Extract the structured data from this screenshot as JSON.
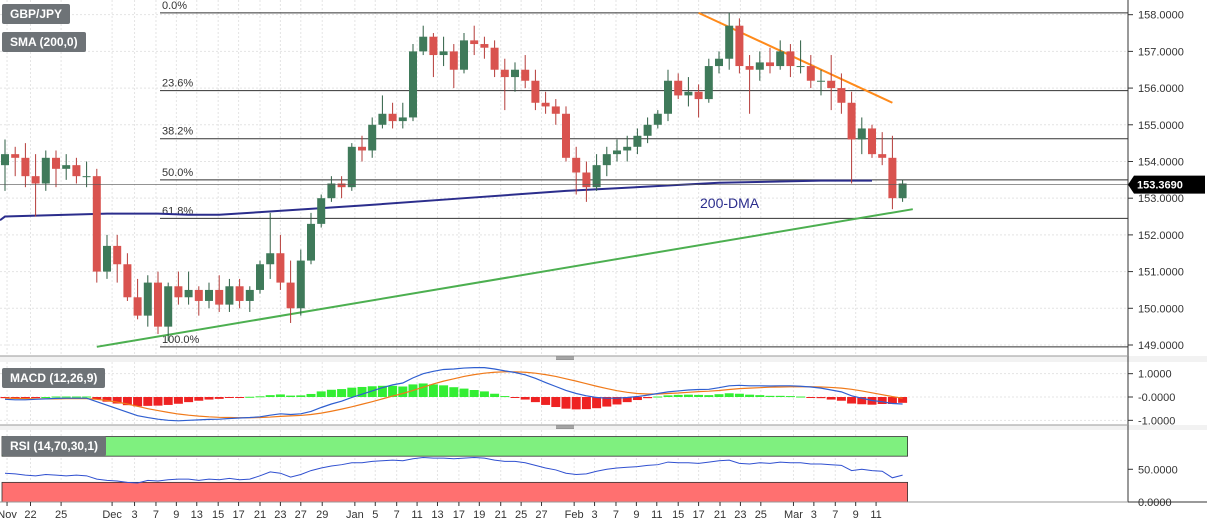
{
  "header": {
    "symbol": "GBP/JPY",
    "sma_label": "SMA (200,0)",
    "macd_label": "MACD (12,26,9)",
    "rsi_label": "RSI (14,70,30,1)"
  },
  "colors": {
    "bull_candle": "#3f7a5a",
    "bear_candle": "#d9534f",
    "sma": "#2b2d8c",
    "trend_up": "#4caf50",
    "trend_down": "#ff8a1a",
    "macd_line": "#2f5fd0",
    "signal_line": "#f07a1a",
    "hist_pos": "#33ee33",
    "hist_neg": "#ee2222",
    "rsi_line": "#3050d0",
    "overbought_zone": "#7ff07f",
    "oversold_zone": "#ff7070",
    "price_tag": "#000000"
  },
  "chart_data": [
    {
      "type": "candlestick",
      "title": "GBP/JPY",
      "price_axis_ticks": [
        "158.0000",
        "157.0000",
        "156.0000",
        "155.0000",
        "154.0000",
        "153.0000",
        "152.0000",
        "151.0000",
        "150.0000",
        "149.0000"
      ],
      "ylim": [
        148.7,
        158.4
      ],
      "current_price": "153.3690",
      "fib_levels": [
        {
          "label": "0.0%",
          "value": 158.05
        },
        {
          "label": "23.6%",
          "value": 155.93
        },
        {
          "label": "38.2%",
          "value": 154.62
        },
        {
          "label": "50.0%",
          "value": 153.5
        },
        {
          "label": "61.8%",
          "value": 152.45
        },
        {
          "label": "100.0%",
          "value": 148.95
        }
      ],
      "sma_label": "200-DMA",
      "sma_200": [
        [
          -20,
          152.4
        ],
        [
          0,
          152.5
        ],
        [
          10,
          152.58
        ],
        [
          15,
          152.58
        ],
        [
          18,
          152.55
        ],
        [
          21,
          152.55
        ],
        [
          25,
          152.62
        ],
        [
          35,
          152.8
        ],
        [
          45,
          153.0
        ],
        [
          55,
          153.2
        ],
        [
          62,
          153.3
        ],
        [
          70,
          153.42
        ],
        [
          80,
          153.48
        ],
        [
          85,
          153.48
        ]
      ],
      "trendline_support": [
        [
          9,
          148.95
        ],
        [
          89,
          152.7
        ]
      ],
      "trendline_resistance": [
        [
          68,
          158.05
        ],
        [
          87,
          155.6
        ]
      ],
      "candles": [
        {
          "o": 153.9,
          "h": 154.6,
          "l": 153.2,
          "c": 154.2
        },
        {
          "o": 154.2,
          "h": 154.4,
          "l": 153.6,
          "c": 154.1
        },
        {
          "o": 154.1,
          "h": 154.5,
          "l": 153.3,
          "c": 153.6
        },
        {
          "o": 153.6,
          "h": 154.2,
          "l": 152.5,
          "c": 153.4
        },
        {
          "o": 153.4,
          "h": 154.3,
          "l": 153.2,
          "c": 154.1
        },
        {
          "o": 154.1,
          "h": 154.3,
          "l": 153.3,
          "c": 153.8
        },
        {
          "o": 153.8,
          "h": 154.2,
          "l": 153.5,
          "c": 153.9
        },
        {
          "o": 153.9,
          "h": 154.1,
          "l": 153.4,
          "c": 153.6
        },
        {
          "o": 153.6,
          "h": 154.0,
          "l": 153.3,
          "c": 153.6
        },
        {
          "o": 153.6,
          "h": 153.8,
          "l": 150.7,
          "c": 151.0
        },
        {
          "o": 151.0,
          "h": 152.0,
          "l": 150.8,
          "c": 151.7
        },
        {
          "o": 151.7,
          "h": 152.0,
          "l": 150.7,
          "c": 151.2
        },
        {
          "o": 151.2,
          "h": 151.5,
          "l": 150.2,
          "c": 150.3
        },
        {
          "o": 150.3,
          "h": 150.8,
          "l": 149.7,
          "c": 149.8
        },
        {
          "o": 149.8,
          "h": 150.9,
          "l": 149.5,
          "c": 150.7
        },
        {
          "o": 150.7,
          "h": 151.0,
          "l": 149.3,
          "c": 149.5
        },
        {
          "o": 149.5,
          "h": 150.7,
          "l": 149.1,
          "c": 150.6
        },
        {
          "o": 150.6,
          "h": 151.0,
          "l": 150.1,
          "c": 150.3
        },
        {
          "o": 150.3,
          "h": 151.0,
          "l": 150.1,
          "c": 150.5
        },
        {
          "o": 150.5,
          "h": 150.6,
          "l": 149.8,
          "c": 150.2
        },
        {
          "o": 150.2,
          "h": 150.7,
          "l": 150.0,
          "c": 150.5
        },
        {
          "o": 150.5,
          "h": 150.9,
          "l": 149.9,
          "c": 150.1
        },
        {
          "o": 150.1,
          "h": 150.8,
          "l": 149.9,
          "c": 150.6
        },
        {
          "o": 150.6,
          "h": 150.8,
          "l": 150.0,
          "c": 150.2
        },
        {
          "o": 150.2,
          "h": 150.6,
          "l": 149.9,
          "c": 150.5
        },
        {
          "o": 150.5,
          "h": 151.3,
          "l": 150.4,
          "c": 151.2
        },
        {
          "o": 151.2,
          "h": 152.6,
          "l": 150.8,
          "c": 151.5
        },
        {
          "o": 151.5,
          "h": 152.0,
          "l": 150.5,
          "c": 150.7
        },
        {
          "o": 150.7,
          "h": 151.3,
          "l": 149.6,
          "c": 150.0
        },
        {
          "o": 150.0,
          "h": 151.6,
          "l": 149.8,
          "c": 151.3
        },
        {
          "o": 151.3,
          "h": 152.6,
          "l": 151.2,
          "c": 152.3
        },
        {
          "o": 152.3,
          "h": 153.1,
          "l": 152.2,
          "c": 153.0
        },
        {
          "o": 153.0,
          "h": 153.6,
          "l": 152.9,
          "c": 153.4
        },
        {
          "o": 153.4,
          "h": 153.6,
          "l": 153.0,
          "c": 153.3
        },
        {
          "o": 153.3,
          "h": 154.5,
          "l": 153.2,
          "c": 154.4
        },
        {
          "o": 154.4,
          "h": 154.7,
          "l": 154.0,
          "c": 154.3
        },
        {
          "o": 154.3,
          "h": 155.2,
          "l": 154.1,
          "c": 155.0
        },
        {
          "o": 155.0,
          "h": 155.8,
          "l": 154.9,
          "c": 155.3
        },
        {
          "o": 155.3,
          "h": 155.6,
          "l": 154.9,
          "c": 155.1
        },
        {
          "o": 155.1,
          "h": 155.6,
          "l": 154.9,
          "c": 155.2
        },
        {
          "o": 155.2,
          "h": 157.2,
          "l": 155.1,
          "c": 157.0
        },
        {
          "o": 157.0,
          "h": 157.7,
          "l": 156.9,
          "c": 157.4
        },
        {
          "o": 157.4,
          "h": 157.5,
          "l": 156.3,
          "c": 156.9
        },
        {
          "o": 156.9,
          "h": 157.4,
          "l": 156.6,
          "c": 157.0
        },
        {
          "o": 157.0,
          "h": 157.2,
          "l": 156.0,
          "c": 156.5
        },
        {
          "o": 156.5,
          "h": 157.5,
          "l": 156.4,
          "c": 157.3
        },
        {
          "o": 157.3,
          "h": 157.7,
          "l": 156.9,
          "c": 157.2
        },
        {
          "o": 157.2,
          "h": 157.4,
          "l": 156.8,
          "c": 157.1
        },
        {
          "o": 157.1,
          "h": 157.3,
          "l": 156.3,
          "c": 156.5
        },
        {
          "o": 156.5,
          "h": 156.8,
          "l": 155.4,
          "c": 156.3
        },
        {
          "o": 156.3,
          "h": 156.7,
          "l": 155.9,
          "c": 156.5
        },
        {
          "o": 156.5,
          "h": 156.9,
          "l": 156.0,
          "c": 156.2
        },
        {
          "o": 156.2,
          "h": 156.5,
          "l": 155.4,
          "c": 155.6
        },
        {
          "o": 155.6,
          "h": 155.9,
          "l": 155.3,
          "c": 155.5
        },
        {
          "o": 155.5,
          "h": 155.7,
          "l": 155.0,
          "c": 155.3
        },
        {
          "o": 155.3,
          "h": 155.5,
          "l": 154.0,
          "c": 154.1
        },
        {
          "o": 154.1,
          "h": 154.4,
          "l": 153.1,
          "c": 153.7
        },
        {
          "o": 153.7,
          "h": 154.0,
          "l": 152.9,
          "c": 153.3
        },
        {
          "o": 153.3,
          "h": 154.2,
          "l": 153.2,
          "c": 153.9
        },
        {
          "o": 153.9,
          "h": 154.4,
          "l": 153.6,
          "c": 154.2
        },
        {
          "o": 154.2,
          "h": 154.6,
          "l": 154.0,
          "c": 154.3
        },
        {
          "o": 154.3,
          "h": 154.7,
          "l": 154.0,
          "c": 154.4
        },
        {
          "o": 154.4,
          "h": 154.9,
          "l": 154.2,
          "c": 154.7
        },
        {
          "o": 154.7,
          "h": 155.2,
          "l": 154.5,
          "c": 155.0
        },
        {
          "o": 155.0,
          "h": 155.4,
          "l": 154.9,
          "c": 155.3
        },
        {
          "o": 155.3,
          "h": 156.5,
          "l": 155.1,
          "c": 156.2
        },
        {
          "o": 156.2,
          "h": 156.4,
          "l": 155.7,
          "c": 155.8
        },
        {
          "o": 155.8,
          "h": 156.3,
          "l": 155.5,
          "c": 155.9
        },
        {
          "o": 155.9,
          "h": 156.1,
          "l": 155.2,
          "c": 155.7
        },
        {
          "o": 155.7,
          "h": 156.8,
          "l": 155.6,
          "c": 156.6
        },
        {
          "o": 156.6,
          "h": 157.0,
          "l": 156.4,
          "c": 156.8
        },
        {
          "o": 156.8,
          "h": 158.05,
          "l": 156.5,
          "c": 157.7
        },
        {
          "o": 157.7,
          "h": 157.9,
          "l": 156.4,
          "c": 156.6
        },
        {
          "o": 156.6,
          "h": 156.9,
          "l": 155.3,
          "c": 156.5
        },
        {
          "o": 156.5,
          "h": 157.0,
          "l": 156.2,
          "c": 156.7
        },
        {
          "o": 156.7,
          "h": 157.1,
          "l": 156.4,
          "c": 156.6
        },
        {
          "o": 156.6,
          "h": 157.3,
          "l": 156.5,
          "c": 157.0
        },
        {
          "o": 157.0,
          "h": 157.2,
          "l": 156.3,
          "c": 156.6
        },
        {
          "o": 156.6,
          "h": 157.3,
          "l": 156.4,
          "c": 156.6
        },
        {
          "o": 156.6,
          "h": 156.9,
          "l": 156.0,
          "c": 156.2
        },
        {
          "o": 156.2,
          "h": 156.5,
          "l": 155.8,
          "c": 156.2
        },
        {
          "o": 156.2,
          "h": 156.9,
          "l": 155.4,
          "c": 156.0
        },
        {
          "o": 156.0,
          "h": 156.4,
          "l": 155.3,
          "c": 155.6
        },
        {
          "o": 155.6,
          "h": 155.9,
          "l": 153.4,
          "c": 154.6
        },
        {
          "o": 154.6,
          "h": 155.2,
          "l": 154.2,
          "c": 154.9
        },
        {
          "o": 154.9,
          "h": 155.0,
          "l": 154.1,
          "c": 154.2
        },
        {
          "o": 154.2,
          "h": 154.8,
          "l": 153.9,
          "c": 154.1
        },
        {
          "o": 154.1,
          "h": 154.7,
          "l": 152.7,
          "c": 153.0
        },
        {
          "o": 153.0,
          "h": 153.5,
          "l": 152.9,
          "c": 153.4
        }
      ]
    },
    {
      "type": "line",
      "title": "MACD (12,26,9)",
      "axis_ticks": [
        "1.0000",
        "-0.0000",
        "-1.0000"
      ],
      "ylim": [
        -1.2,
        1.5
      ],
      "macd": [
        -0.1,
        -0.12,
        -0.12,
        -0.1,
        -0.08,
        -0.06,
        -0.05,
        -0.05,
        -0.05,
        -0.2,
        -0.35,
        -0.5,
        -0.65,
        -0.8,
        -0.88,
        -0.95,
        -1.0,
        -1.02,
        -1.0,
        -0.98,
        -0.96,
        -0.95,
        -0.92,
        -0.9,
        -0.88,
        -0.85,
        -0.78,
        -0.72,
        -0.75,
        -0.72,
        -0.62,
        -0.45,
        -0.3,
        -0.18,
        -0.02,
        0.12,
        0.26,
        0.4,
        0.52,
        0.6,
        0.82,
        1.0,
        1.1,
        1.18,
        1.2,
        1.24,
        1.26,
        1.26,
        1.2,
        1.12,
        1.05,
        0.95,
        0.8,
        0.62,
        0.45,
        0.28,
        0.15,
        0.05,
        -0.02,
        -0.05,
        -0.05,
        -0.02,
        0.02,
        0.08,
        0.15,
        0.22,
        0.26,
        0.3,
        0.32,
        0.33,
        0.4,
        0.48,
        0.5,
        0.48,
        0.48,
        0.47,
        0.48,
        0.48,
        0.46,
        0.43,
        0.38,
        0.3,
        0.22,
        0.05,
        -0.05,
        -0.15,
        -0.2,
        -0.28,
        -0.3
      ],
      "signal": [
        -0.05,
        -0.06,
        -0.07,
        -0.08,
        -0.08,
        -0.08,
        -0.07,
        -0.07,
        -0.07,
        -0.1,
        -0.15,
        -0.22,
        -0.3,
        -0.4,
        -0.5,
        -0.58,
        -0.66,
        -0.73,
        -0.78,
        -0.82,
        -0.85,
        -0.87,
        -0.88,
        -0.89,
        -0.89,
        -0.88,
        -0.86,
        -0.83,
        -0.81,
        -0.79,
        -0.75,
        -0.69,
        -0.61,
        -0.52,
        -0.42,
        -0.31,
        -0.2,
        -0.08,
        0.04,
        0.15,
        0.28,
        0.42,
        0.56,
        0.68,
        0.78,
        0.88,
        0.96,
        1.02,
        1.06,
        1.08,
        1.08,
        1.06,
        1.02,
        0.96,
        0.88,
        0.78,
        0.68,
        0.57,
        0.46,
        0.36,
        0.27,
        0.2,
        0.15,
        0.13,
        0.13,
        0.15,
        0.17,
        0.2,
        0.23,
        0.25,
        0.28,
        0.32,
        0.36,
        0.38,
        0.4,
        0.42,
        0.43,
        0.44,
        0.44,
        0.44,
        0.43,
        0.41,
        0.38,
        0.33,
        0.26,
        0.18,
        0.1,
        0.02,
        -0.05
      ],
      "histogram": [
        -0.05,
        -0.06,
        -0.05,
        -0.02,
        0,
        0.02,
        0.02,
        0.02,
        0.02,
        -0.1,
        -0.2,
        -0.28,
        -0.35,
        -0.4,
        -0.38,
        -0.37,
        -0.34,
        -0.29,
        -0.22,
        -0.16,
        -0.11,
        -0.08,
        -0.04,
        -0.01,
        0.01,
        0.03,
        0.08,
        0.11,
        0.06,
        0.07,
        0.13,
        0.24,
        0.31,
        0.34,
        0.4,
        0.43,
        0.46,
        0.48,
        0.48,
        0.45,
        0.54,
        0.58,
        0.54,
        0.5,
        0.42,
        0.36,
        0.3,
        0.24,
        0.14,
        0.04,
        -0.03,
        -0.11,
        -0.22,
        -0.34,
        -0.43,
        -0.5,
        -0.53,
        -0.52,
        -0.48,
        -0.41,
        -0.32,
        -0.22,
        -0.13,
        -0.05,
        0.02,
        0.07,
        0.09,
        0.1,
        0.09,
        0.08,
        0.12,
        0.16,
        0.14,
        0.1,
        0.08,
        0.05,
        0.05,
        0.04,
        0.02,
        -0.01,
        -0.05,
        -0.11,
        -0.16,
        -0.28,
        -0.31,
        -0.33,
        -0.3,
        -0.3,
        -0.25
      ]
    },
    {
      "type": "line",
      "title": "RSI (14,70,30,1)",
      "axis_ticks": [
        "50.0000",
        "0.0000"
      ],
      "ylim": [
        0,
        110
      ],
      "overbought": 70,
      "oversold": 30,
      "rsi": [
        44,
        43,
        41,
        40,
        42,
        41,
        40,
        41,
        40,
        35,
        33,
        32,
        30,
        29,
        33,
        32,
        34,
        35,
        35,
        33,
        35,
        34,
        36,
        34,
        35,
        40,
        46,
        44,
        38,
        42,
        48,
        52,
        55,
        57,
        60,
        60,
        62,
        63,
        64,
        63,
        66,
        68,
        67,
        67,
        66,
        67,
        68,
        67,
        64,
        62,
        62,
        60,
        56,
        52,
        49,
        44,
        42,
        43,
        47,
        50,
        52,
        53,
        54,
        56,
        57,
        61,
        60,
        60,
        59,
        61,
        63,
        64,
        59,
        58,
        60,
        59,
        61,
        60,
        60,
        58,
        58,
        57,
        56,
        48,
        50,
        48,
        47,
        37,
        41
      ]
    }
  ],
  "time_axis": [
    {
      "label": "Nov",
      "idx": 0.2
    },
    {
      "label": "22",
      "idx": 2.5
    },
    {
      "label": "25",
      "idx": 5.5
    },
    {
      "label": "Dec",
      "idx": 10.5
    },
    {
      "label": "3",
      "idx": 12.7
    },
    {
      "label": "7",
      "idx": 14.8
    },
    {
      "label": "9",
      "idx": 16.8
    },
    {
      "label": "13",
      "idx": 18.8
    },
    {
      "label": "15",
      "idx": 20.9
    },
    {
      "label": "17",
      "idx": 22.9
    },
    {
      "label": "21",
      "idx": 25
    },
    {
      "label": "23",
      "idx": 27
    },
    {
      "label": "27",
      "idx": 29
    },
    {
      "label": "29",
      "idx": 31.1
    },
    {
      "label": "Jan",
      "idx": 34.3
    },
    {
      "label": "5",
      "idx": 36.3
    },
    {
      "label": "7",
      "idx": 38.4
    },
    {
      "label": "11",
      "idx": 40.4
    },
    {
      "label": "13",
      "idx": 42.4
    },
    {
      "label": "17",
      "idx": 44.5
    },
    {
      "label": "19",
      "idx": 46.5
    },
    {
      "label": "21",
      "idx": 48.6
    },
    {
      "label": "25",
      "idx": 50.6
    },
    {
      "label": "27",
      "idx": 52.6
    },
    {
      "label": "Feb",
      "idx": 55.8
    },
    {
      "label": "3",
      "idx": 57.8
    },
    {
      "label": "7",
      "idx": 59.9
    },
    {
      "label": "9",
      "idx": 61.9
    },
    {
      "label": "11",
      "idx": 63.9
    },
    {
      "label": "15",
      "idx": 66
    },
    {
      "label": "17",
      "idx": 68
    },
    {
      "label": "21",
      "idx": 70.1
    },
    {
      "label": "23",
      "idx": 72.1
    },
    {
      "label": "25",
      "idx": 74.1
    },
    {
      "label": "Mar",
      "idx": 77.3
    },
    {
      "label": "3",
      "idx": 79.3
    },
    {
      "label": "7",
      "idx": 81.4
    },
    {
      "label": "9",
      "idx": 83.4
    },
    {
      "label": "11",
      "idx": 85.4
    }
  ]
}
